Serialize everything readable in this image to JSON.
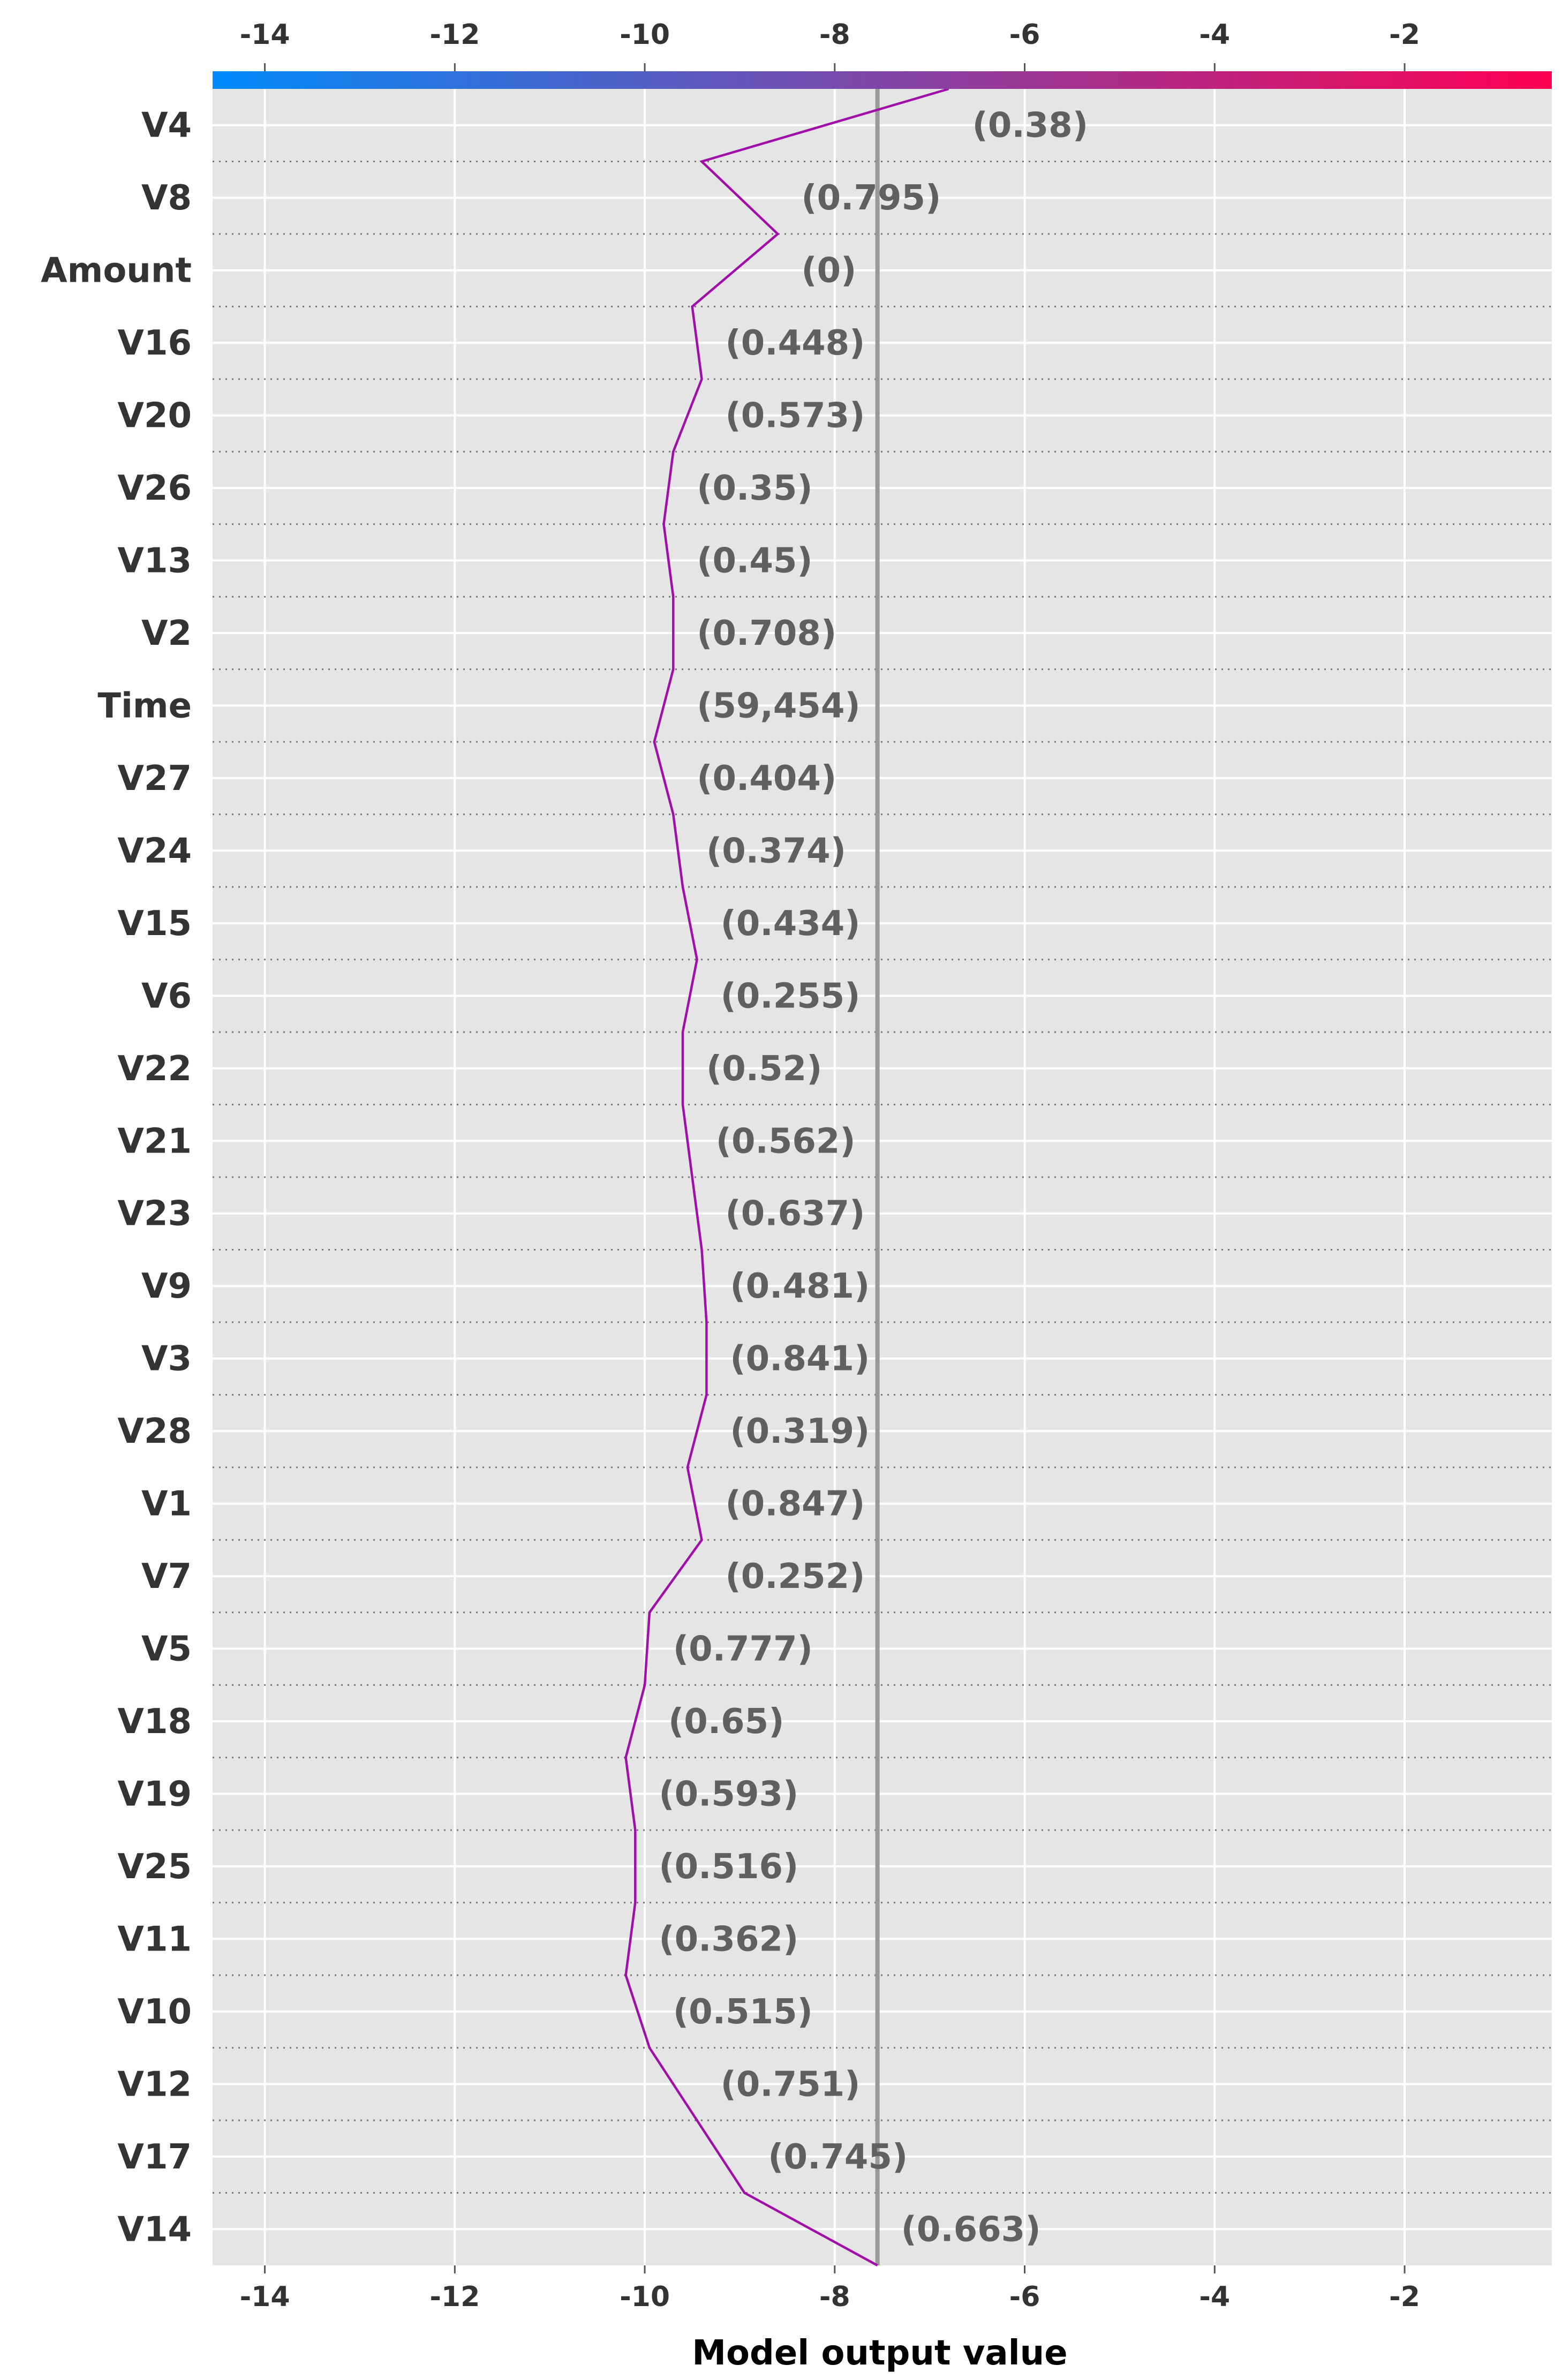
{
  "chart_data": {
    "type": "line",
    "title": "",
    "xlabel": "Model output value",
    "ylabel": "",
    "xlim": [
      -14.55,
      -0.45
    ],
    "xticks": [
      -14,
      -12,
      -10,
      -8,
      -6,
      -4,
      -2
    ],
    "xtick_labels": [
      "-14",
      "-12",
      "-10",
      "-8",
      "-6",
      "-4",
      "-2"
    ],
    "base_value": -7.55,
    "final_value": -6.8,
    "colormap": [
      "#008bfb",
      "#ff0052"
    ],
    "line_color": "#a010a8",
    "grid": true,
    "features": [
      {
        "name": "V4",
        "value_label": "(0.38)",
        "x": -6.8
      },
      {
        "name": "V8",
        "value_label": "(0.795)",
        "x": -9.4
      },
      {
        "name": "Amount",
        "value_label": "(0)",
        "x": -8.6
      },
      {
        "name": "V16",
        "value_label": "(0.448)",
        "x": -9.5
      },
      {
        "name": "V20",
        "value_label": "(0.573)",
        "x": -9.4
      },
      {
        "name": "V26",
        "value_label": "(0.35)",
        "x": -9.7
      },
      {
        "name": "V13",
        "value_label": "(0.45)",
        "x": -9.8
      },
      {
        "name": "V2",
        "value_label": "(0.708)",
        "x": -9.7
      },
      {
        "name": "Time",
        "value_label": "(59,454)",
        "x": -9.7
      },
      {
        "name": "V27",
        "value_label": "(0.404)",
        "x": -9.9
      },
      {
        "name": "V24",
        "value_label": "(0.374)",
        "x": -9.7
      },
      {
        "name": "V15",
        "value_label": "(0.434)",
        "x": -9.6
      },
      {
        "name": "V6",
        "value_label": "(0.255)",
        "x": -9.45
      },
      {
        "name": "V22",
        "value_label": "(0.52)",
        "x": -9.6
      },
      {
        "name": "V21",
        "value_label": "(0.562)",
        "x": -9.6
      },
      {
        "name": "V23",
        "value_label": "(0.637)",
        "x": -9.5
      },
      {
        "name": "V9",
        "value_label": "(0.481)",
        "x": -9.4
      },
      {
        "name": "V3",
        "value_label": "(0.841)",
        "x": -9.35
      },
      {
        "name": "V28",
        "value_label": "(0.319)",
        "x": -9.35
      },
      {
        "name": "V1",
        "value_label": "(0.847)",
        "x": -9.55
      },
      {
        "name": "V7",
        "value_label": "(0.252)",
        "x": -9.4
      },
      {
        "name": "V5",
        "value_label": "(0.777)",
        "x": -9.95
      },
      {
        "name": "V18",
        "value_label": "(0.65)",
        "x": -10.0
      },
      {
        "name": "V19",
        "value_label": "(0.593)",
        "x": -10.2
      },
      {
        "name": "V25",
        "value_label": "(0.516)",
        "x": -10.1
      },
      {
        "name": "V11",
        "value_label": "(0.362)",
        "x": -10.1
      },
      {
        "name": "V10",
        "value_label": "(0.515)",
        "x": -10.2
      },
      {
        "name": "V12",
        "value_label": "(0.751)",
        "x": -9.95
      },
      {
        "name": "V17",
        "value_label": "(0.745)",
        "x": -9.45
      },
      {
        "name": "V14",
        "value_label": "(0.663)",
        "x": -8.95
      }
    ]
  }
}
